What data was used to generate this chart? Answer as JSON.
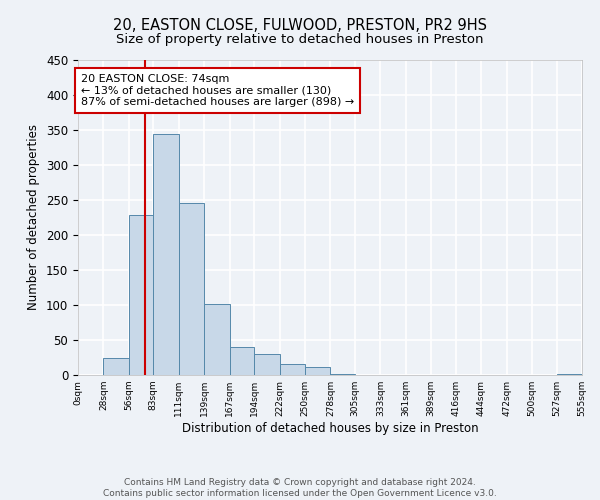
{
  "title": "20, EASTON CLOSE, FULWOOD, PRESTON, PR2 9HS",
  "subtitle": "Size of property relative to detached houses in Preston",
  "xlabel": "Distribution of detached houses by size in Preston",
  "ylabel": "Number of detached properties",
  "bin_edges": [
    0,
    28,
    56,
    83,
    111,
    139,
    167,
    194,
    222,
    250,
    278,
    305,
    333,
    361,
    389,
    416,
    444,
    472,
    500,
    527,
    555
  ],
  "bar_heights": [
    0,
    25,
    228,
    345,
    246,
    101,
    40,
    30,
    16,
    11,
    2,
    0,
    0,
    0,
    0,
    0,
    0,
    0,
    0,
    2
  ],
  "bar_color": "#c8d8e8",
  "bar_edge_color": "#5588aa",
  "property_line_x": 74,
  "property_line_color": "#cc0000",
  "annotation_title": "20 EASTON CLOSE: 74sqm",
  "annotation_line1": "← 13% of detached houses are smaller (130)",
  "annotation_line2": "87% of semi-detached houses are larger (898) →",
  "annotation_box_color": "#cc0000",
  "ylim": [
    0,
    450
  ],
  "yticks": [
    0,
    50,
    100,
    150,
    200,
    250,
    300,
    350,
    400,
    450
  ],
  "tick_labels": [
    "0sqm",
    "28sqm",
    "56sqm",
    "83sqm",
    "111sqm",
    "139sqm",
    "167sqm",
    "194sqm",
    "222sqm",
    "250sqm",
    "278sqm",
    "305sqm",
    "333sqm",
    "361sqm",
    "389sqm",
    "416sqm",
    "444sqm",
    "472sqm",
    "500sqm",
    "527sqm",
    "555sqm"
  ],
  "footer_line1": "Contains HM Land Registry data © Crown copyright and database right 2024.",
  "footer_line2": "Contains public sector information licensed under the Open Government Licence v3.0.",
  "background_color": "#eef2f7",
  "plot_background_color": "#eef2f7",
  "grid_color": "#ffffff",
  "title_fontsize": 10.5,
  "subtitle_fontsize": 9.5,
  "axis_label_fontsize": 8.5,
  "tick_fontsize": 6.5,
  "footer_fontsize": 6.5
}
